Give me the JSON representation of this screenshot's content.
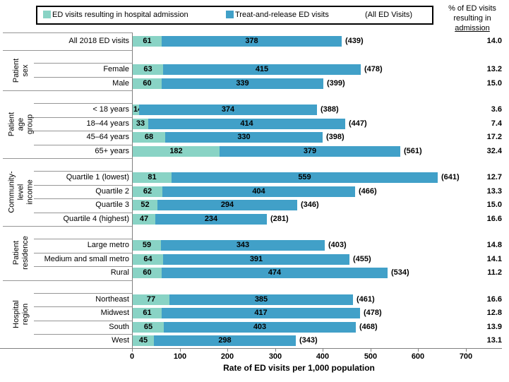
{
  "legend": {
    "admission_label": "ED visits resulting in hospital admission",
    "treat_label": "Treat-and-release ED visits",
    "all_label": "(All ED Visits)"
  },
  "right_header": {
    "line1": "% of ED visits",
    "line2": "resulting in",
    "line3": "admission"
  },
  "colors": {
    "admission": "#89D3C5",
    "treat": "#41A0C8",
    "axis": "#808080",
    "separator": "#969696"
  },
  "chart_data": {
    "type": "bar",
    "stacked": true,
    "orientation": "horizontal",
    "xlabel": "Rate of ED visits per 1,000 population",
    "xlim": [
      0,
      700
    ],
    "xticks": [
      0,
      100,
      200,
      300,
      400,
      500,
      600,
      700
    ],
    "series_names": [
      "ED visits resulting in hospital admission",
      "Treat-and-release ED visits"
    ],
    "right_column_label": "% of ED visits resulting in admission",
    "groups": [
      {
        "label": "",
        "rows": [
          {
            "category": "All 2018 ED visits",
            "admission": 61,
            "treat": 378,
            "total": 439,
            "pct": "14.0"
          }
        ]
      },
      {
        "label": "Patient\nsex",
        "rows": [
          {
            "category": "Female",
            "admission": 63,
            "treat": 415,
            "total": 478,
            "pct": "13.2"
          },
          {
            "category": "Male",
            "admission": 60,
            "treat": 339,
            "total": 399,
            "pct": "15.0"
          }
        ]
      },
      {
        "label": "Patient\nage group",
        "rows": [
          {
            "category": "< 18 years",
            "admission": 14,
            "treat": 374,
            "total": 388,
            "pct": "3.6"
          },
          {
            "category": "18–44 years",
            "admission": 33,
            "treat": 414,
            "total": 447,
            "pct": "7.4"
          },
          {
            "category": "45–64 years",
            "admission": 68,
            "treat": 330,
            "total": 398,
            "pct": "17.2"
          },
          {
            "category": "65+ years",
            "admission": 182,
            "treat": 379,
            "total": 561,
            "pct": "32.4"
          }
        ]
      },
      {
        "label": "Community-level\nincome",
        "rows": [
          {
            "category": "Quartile 1 (lowest)",
            "admission": 81,
            "treat": 559,
            "total": 641,
            "pct": "12.7"
          },
          {
            "category": "Quartile 2",
            "admission": 62,
            "treat": 404,
            "total": 466,
            "pct": "13.3"
          },
          {
            "category": "Quartile 3",
            "admission": 52,
            "treat": 294,
            "total": 346,
            "pct": "15.0"
          },
          {
            "category": "Quartile 4 (highest)",
            "admission": 47,
            "treat": 234,
            "total": 281,
            "pct": "16.6"
          }
        ]
      },
      {
        "label": "Patient\nresidence",
        "rows": [
          {
            "category": "Large metro",
            "admission": 59,
            "treat": 343,
            "total": 403,
            "pct": "14.8"
          },
          {
            "category": "Medium and small metro",
            "admission": 64,
            "treat": 391,
            "total": 455,
            "pct": "14.1"
          },
          {
            "category": "Rural",
            "admission": 60,
            "treat": 474,
            "total": 534,
            "pct": "11.2"
          }
        ]
      },
      {
        "label": "Hospital region",
        "rows": [
          {
            "category": "Northeast",
            "admission": 77,
            "treat": 385,
            "total": 461,
            "pct": "16.6"
          },
          {
            "category": "Midwest",
            "admission": 61,
            "treat": 417,
            "total": 478,
            "pct": "12.8"
          },
          {
            "category": "South",
            "admission": 65,
            "treat": 403,
            "total": 468,
            "pct": "13.9"
          },
          {
            "category": "West",
            "admission": 45,
            "treat": 298,
            "total": 343,
            "pct": "13.1"
          }
        ]
      }
    ]
  }
}
